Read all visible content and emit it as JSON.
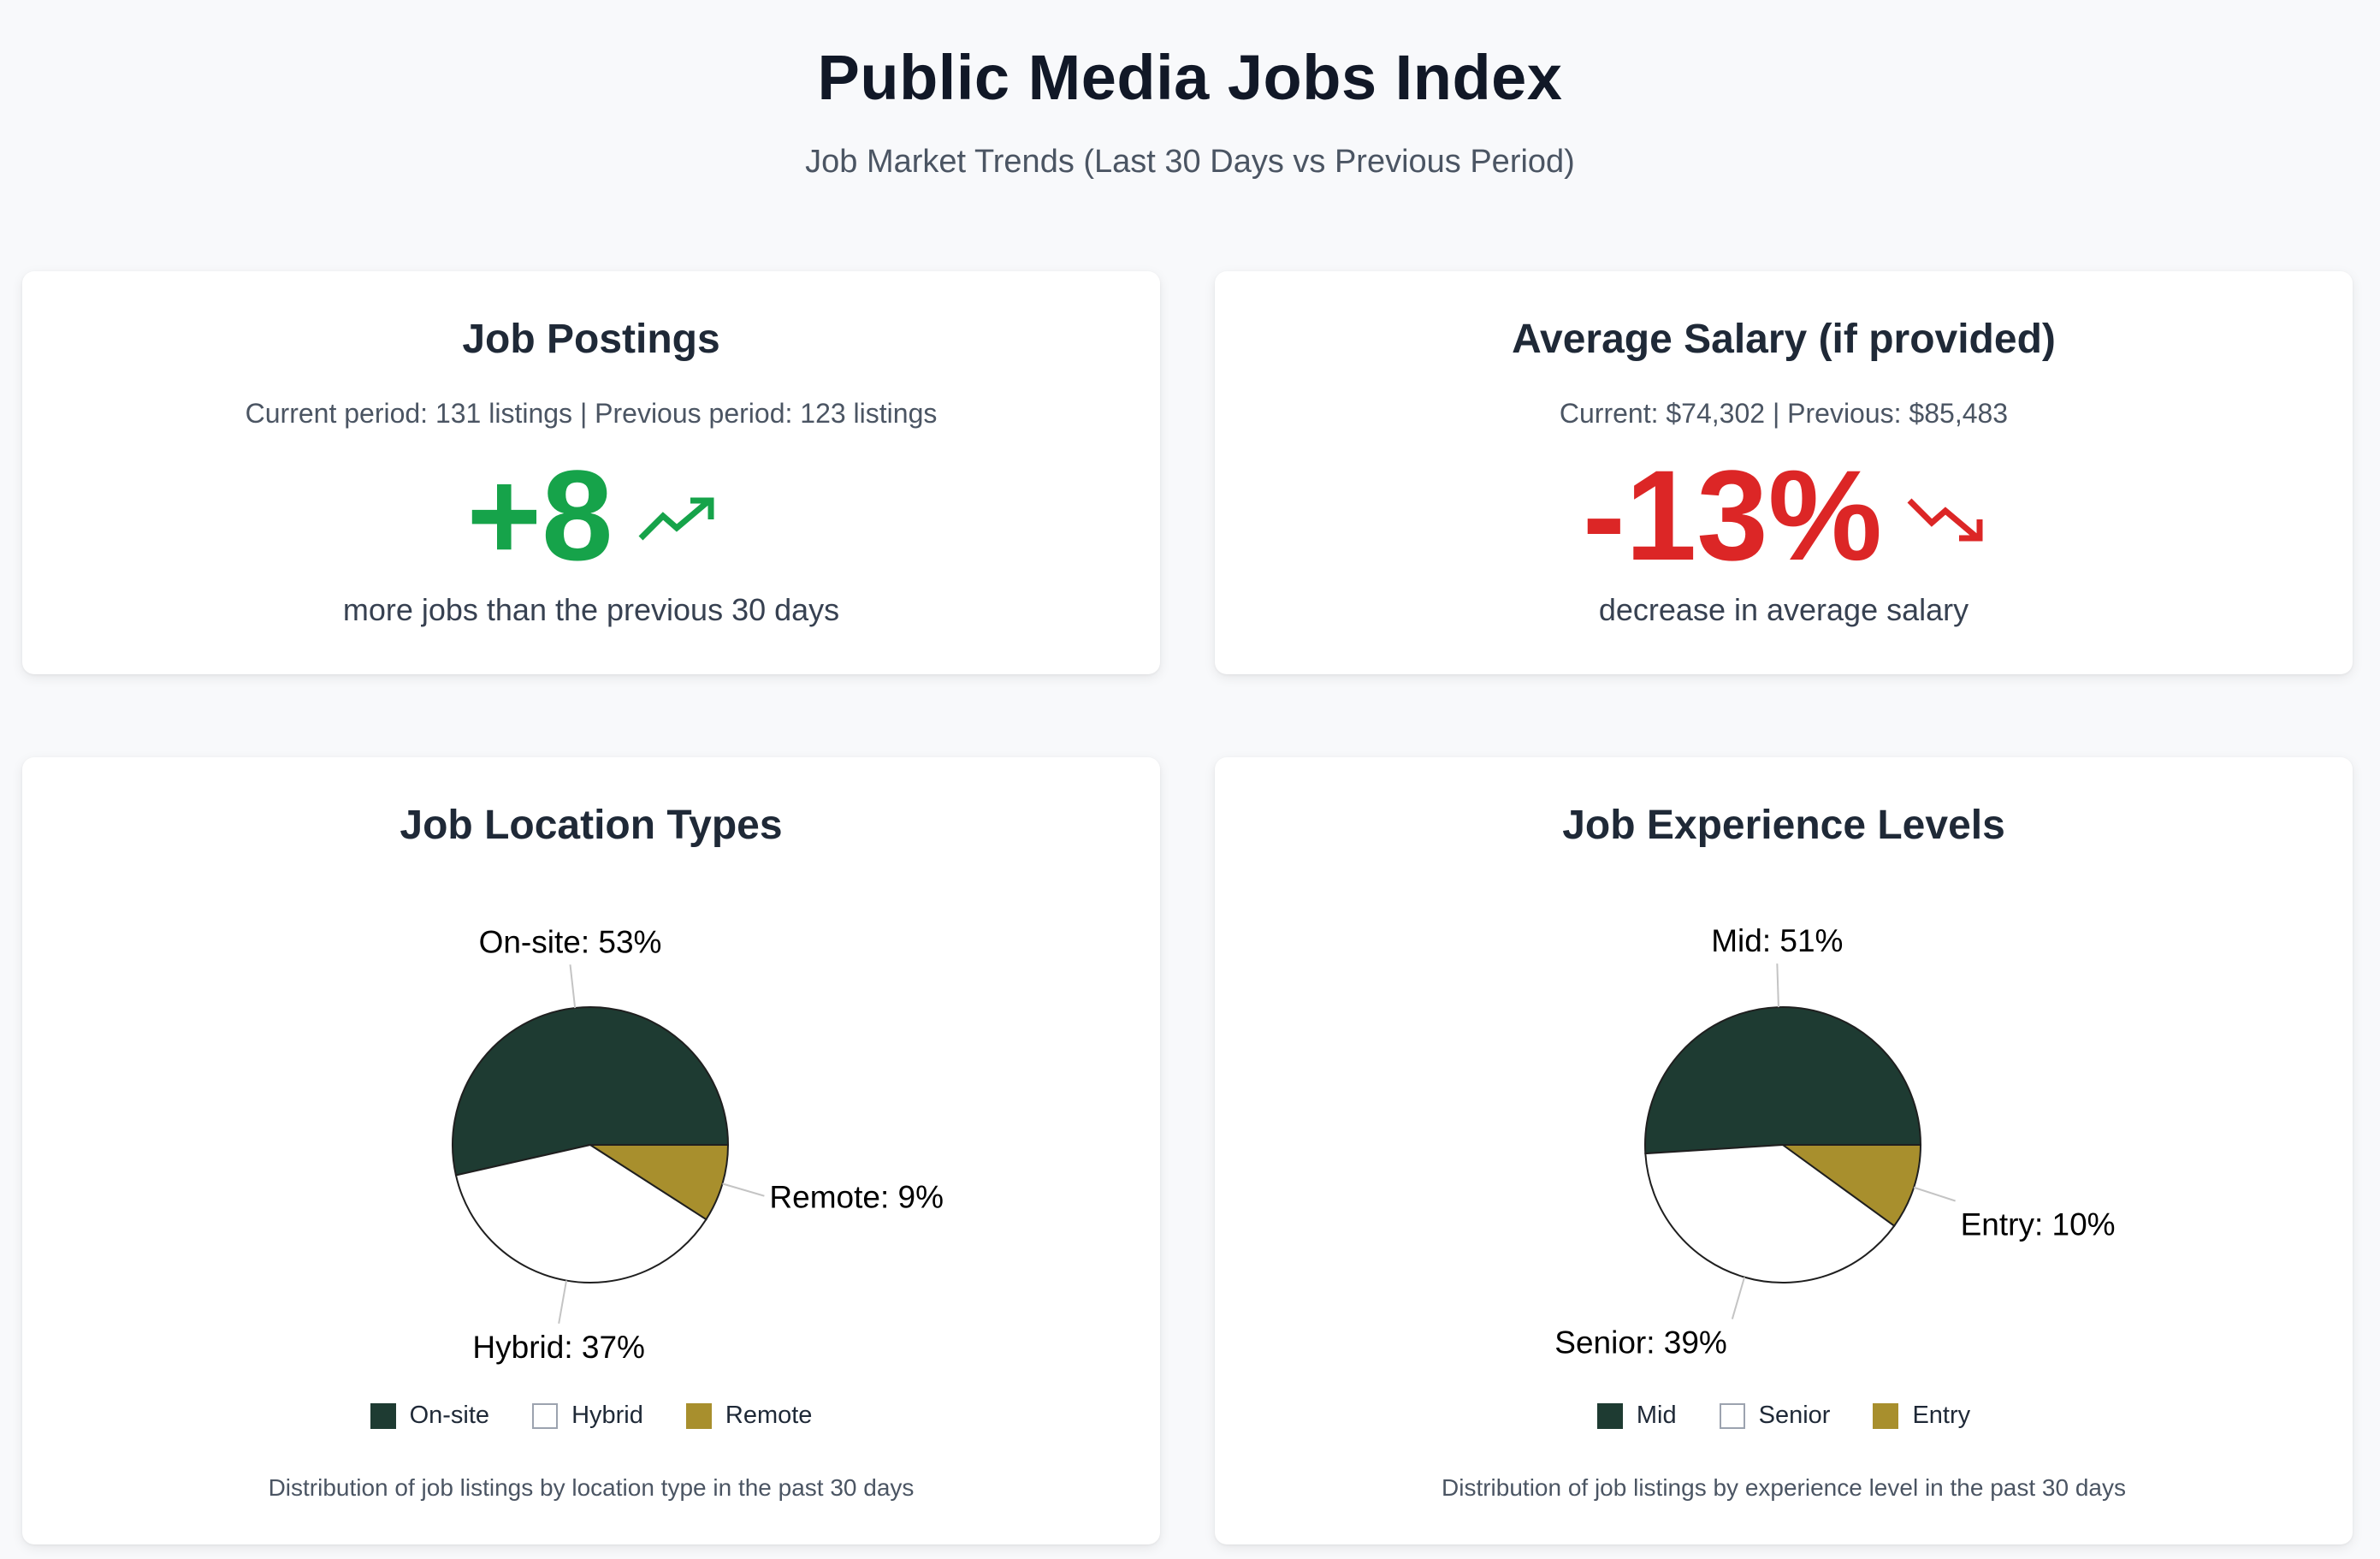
{
  "header": {
    "title": "Public Media Jobs Index",
    "subtitle": "Job Market Trends (Last 30 Days vs Previous Period)"
  },
  "postings": {
    "title": "Job Postings",
    "period_text": "Current period: 131 listings | Previous period: 123 listings",
    "change_value": "+8",
    "change_icon": "trending-up-icon",
    "caption": "more jobs than the previous 30 days",
    "color": "#16a34a"
  },
  "salary": {
    "title": "Average Salary (if provided)",
    "period_text": "Current: $74,302 | Previous: $85,483",
    "change_value": "-13%",
    "change_icon": "trending-down-icon",
    "caption": "decrease in average salary",
    "color": "#dc2626"
  },
  "chart_data": [
    {
      "type": "pie",
      "title": "Job Location Types",
      "categories": [
        "On-site",
        "Hybrid",
        "Remote"
      ],
      "values": [
        53,
        37,
        9
      ],
      "labels": [
        "On-site: 53%",
        "Hybrid: 37%",
        "Remote: 9%"
      ],
      "colors": [
        "#1e3b32",
        "#ffffff",
        "#a88f2d"
      ],
      "legend": [
        "On-site",
        "Hybrid",
        "Remote"
      ],
      "legend_position": "bottom",
      "note": "Distribution of job listings by location type in the past 30 days"
    },
    {
      "type": "pie",
      "title": "Job Experience Levels",
      "categories": [
        "Mid",
        "Senior",
        "Entry"
      ],
      "values": [
        51,
        39,
        10
      ],
      "labels": [
        "Mid: 51%",
        "Senior: 39%",
        "Entry: 10%"
      ],
      "colors": [
        "#1e3b32",
        "#ffffff",
        "#a88f2d"
      ],
      "legend": [
        "Mid",
        "Senior",
        "Entry"
      ],
      "legend_position": "bottom",
      "note": "Distribution of job listings by experience level in the past 30 days"
    }
  ]
}
